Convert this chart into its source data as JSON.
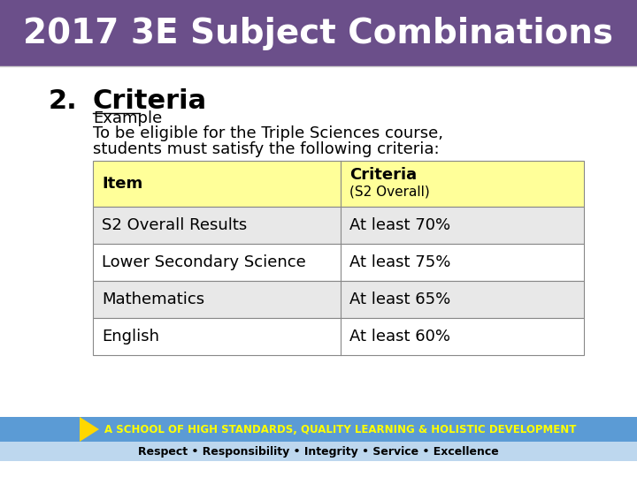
{
  "title": "2017 3E Subject Combinations",
  "title_bg": "#6B4F8A",
  "title_color": "#FFFFFF",
  "section_number": "2.",
  "section_title": "Criteria",
  "example_label": "Example",
  "intro_line1": "To be eligible for the Triple Sciences course,",
  "intro_line2": "students must satisfy the following criteria:",
  "table_header_col1": "Item",
  "table_header_col2a": "Criteria",
  "table_header_col2b": "(S2 Overall)",
  "table_rows": [
    [
      "S2 Overall Results",
      "At least 70%"
    ],
    [
      "Lower Secondary Science",
      "At least 75%"
    ],
    [
      "Mathematics",
      "At least 65%"
    ],
    [
      "English",
      "At least 60%"
    ]
  ],
  "header_bg": "#FFFF99",
  "row_bg_odd": "#E8E8E8",
  "row_bg_even": "#FFFFFF",
  "footer_bg": "#5B9BD5",
  "footer_text": "A SCHOOL OF HIGH STANDARDS, QUALITY LEARNING & HOLISTIC DEVELOPMENT",
  "footer_text_color": "#FFFF00",
  "tagline": "Respect • Responsibility • Integrity • Service • Excellence",
  "tagline_color": "#000000",
  "tagline_bg": "#BDD7EE",
  "bg_color": "#FFFFFF"
}
